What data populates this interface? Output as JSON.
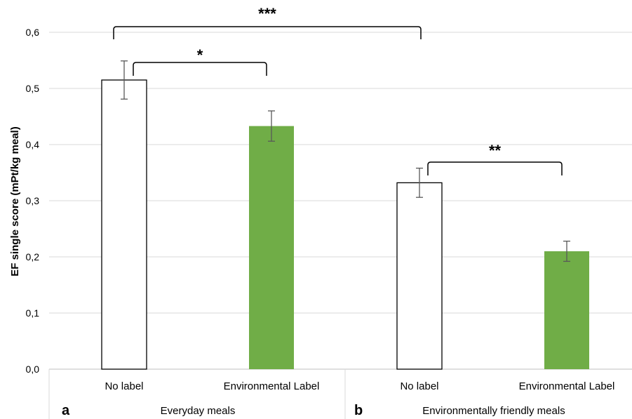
{
  "chart_data": {
    "type": "bar",
    "ylabel": "EF single score (mPt/kg meal)",
    "ylim": [
      0,
      0.6
    ],
    "yticks": [
      "0,0",
      "0,1",
      "0,2",
      "0,3",
      "0,4",
      "0,5",
      "0,6"
    ],
    "grid": true,
    "categories": [
      "No label",
      "Environmental Label",
      "No label",
      "Environmental Label"
    ],
    "groups": [
      {
        "panel": "a",
        "name": "Everyday meals"
      },
      {
        "panel": "b",
        "name": "Environmentally friendly meals"
      }
    ],
    "values": [
      0.515,
      0.433,
      0.332,
      0.21
    ],
    "errors": [
      0.034,
      0.027,
      0.026,
      0.018
    ],
    "bar_fill_colors": [
      "#ffffff",
      "#70ad47",
      "#ffffff",
      "#70ad47"
    ],
    "bar_stroke_color": "#000000",
    "significance": [
      {
        "from": 0,
        "to": 2,
        "label": "***"
      },
      {
        "from": 0,
        "to": 1,
        "label": "*"
      },
      {
        "from": 2,
        "to": 3,
        "label": "**"
      }
    ]
  }
}
